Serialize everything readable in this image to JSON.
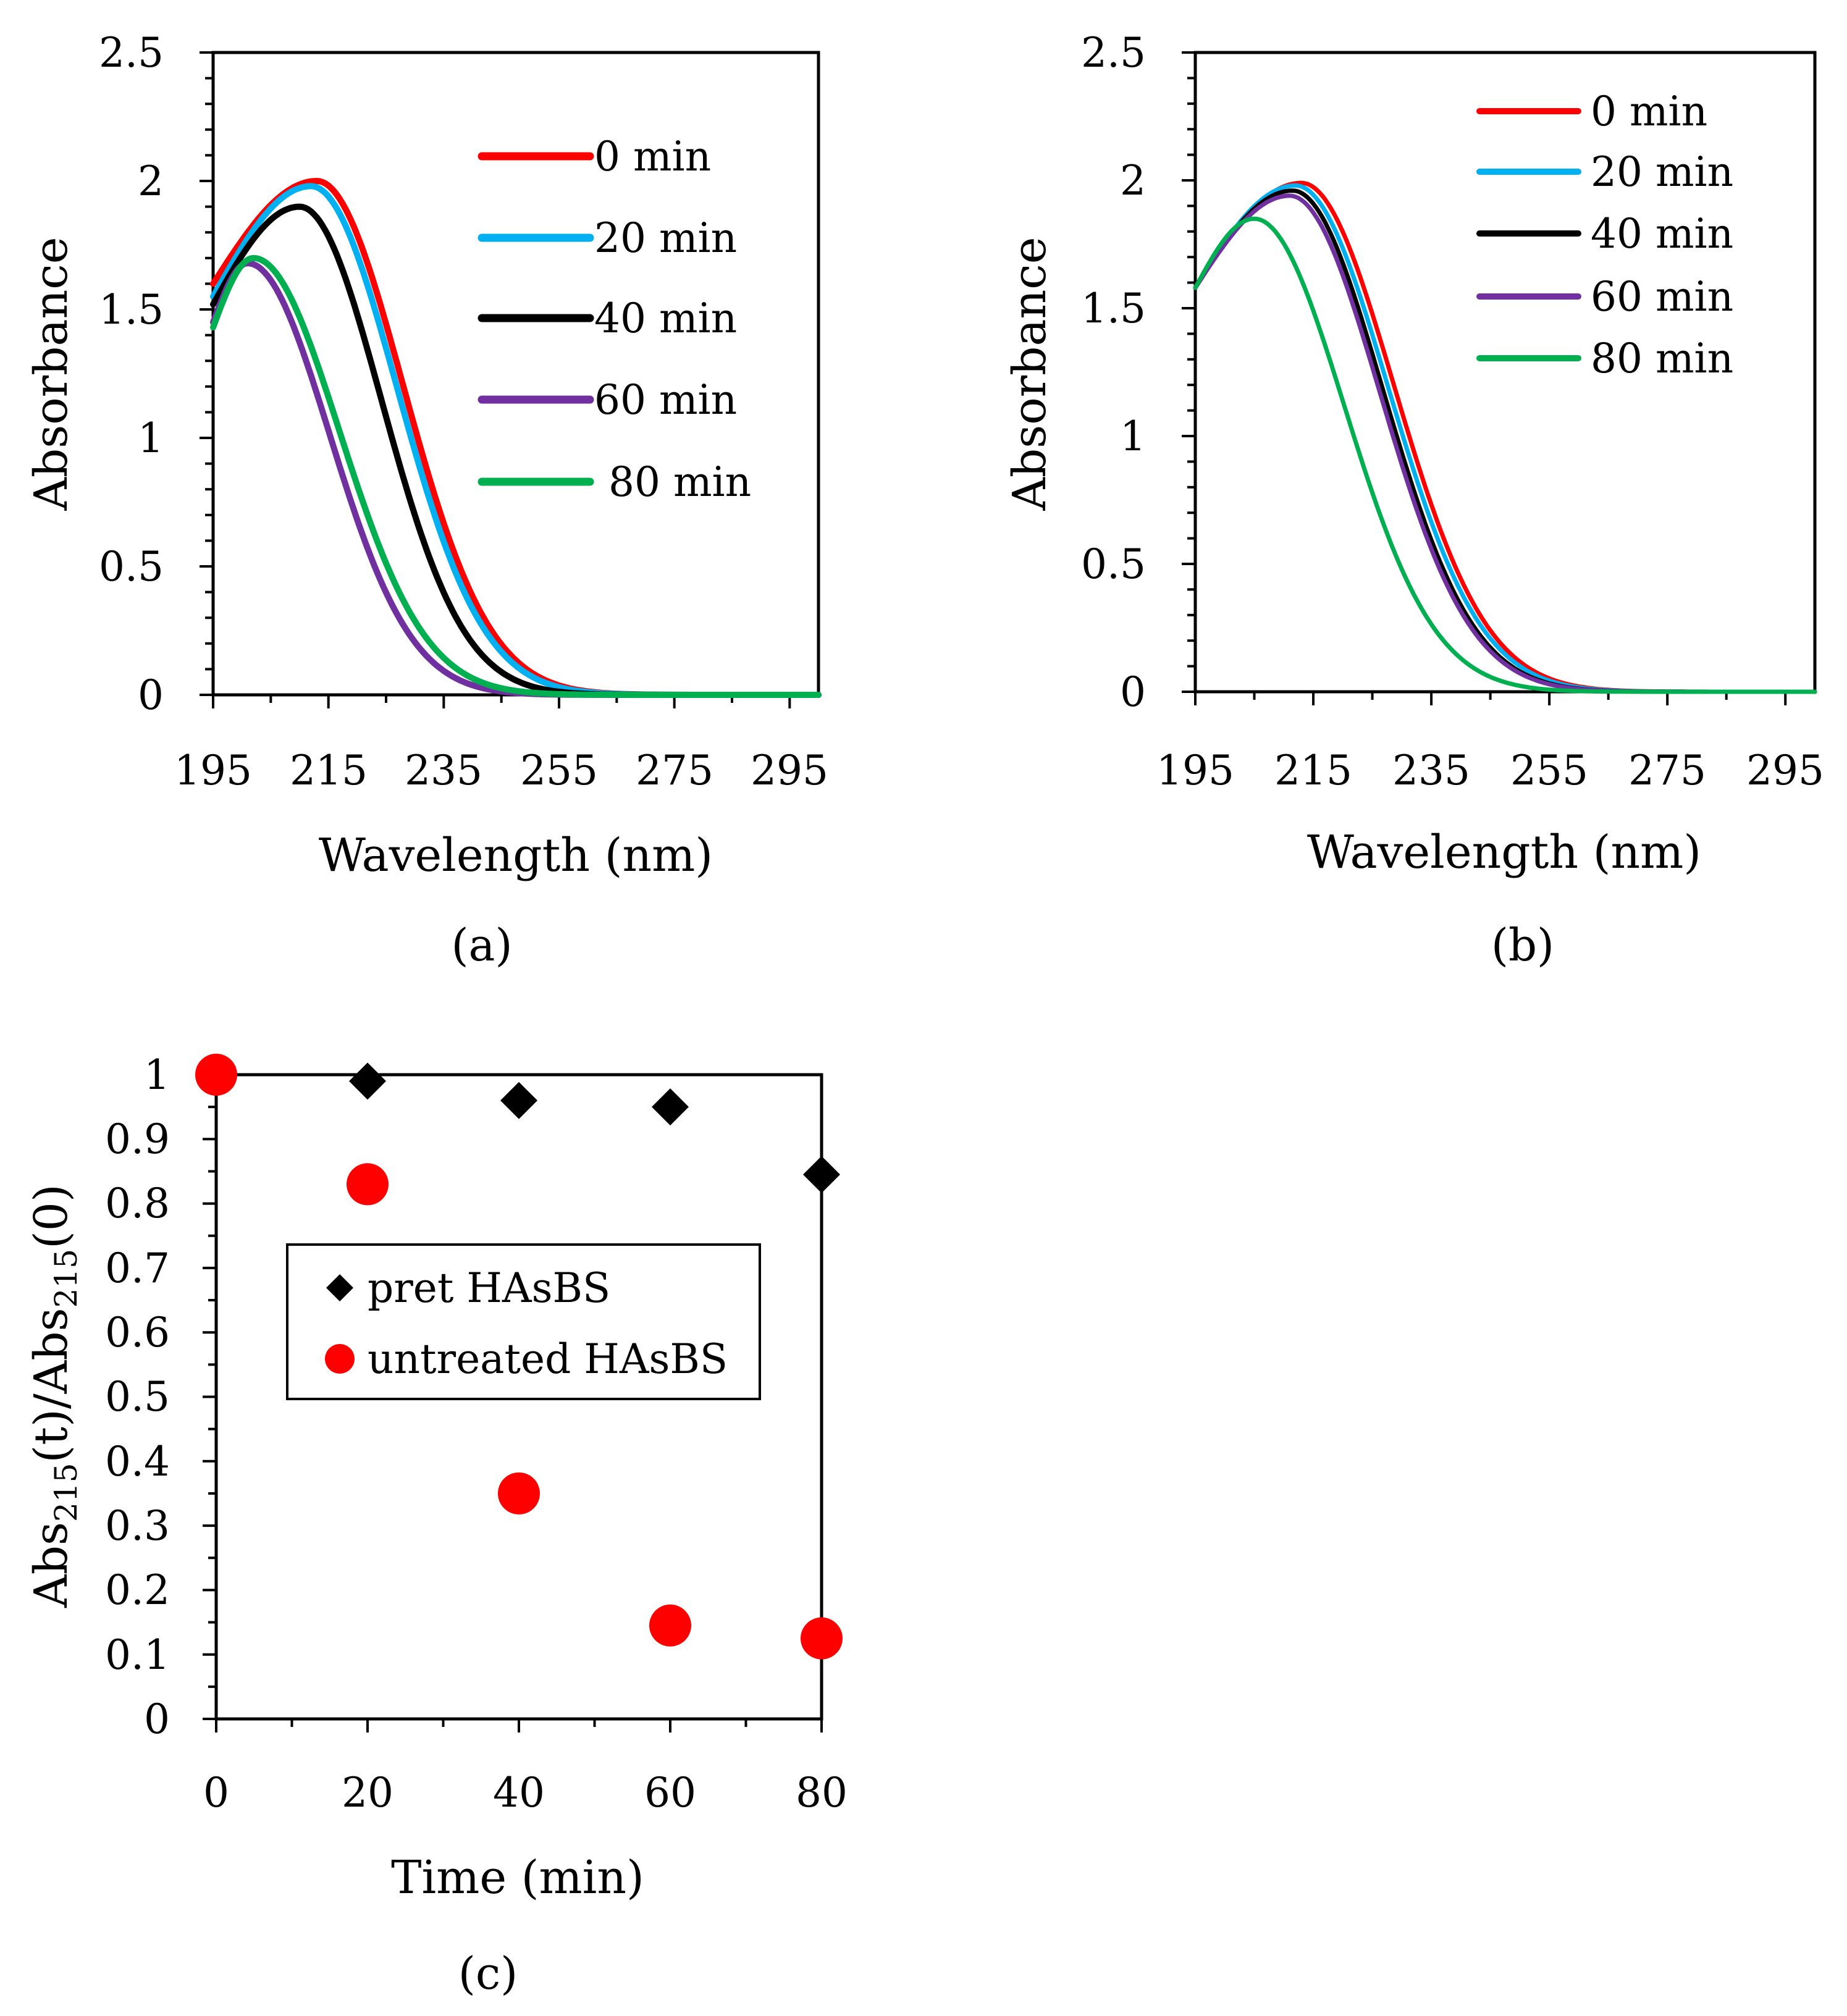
{
  "chart_data": [
    {
      "id": "a",
      "type": "line",
      "panel_label": "(a)",
      "xlabel": "Wavelength (nm)",
      "ylabel": "Absorbance",
      "xlim": [
        195,
        300
      ],
      "ylim": [
        0,
        2.5
      ],
      "x_ticks": [
        "195",
        "215",
        "235",
        "255",
        "275",
        "295"
      ],
      "y_ticks": [
        "0",
        "0.5",
        "1",
        "1.5",
        "2",
        "2.5"
      ],
      "legend_position": "top-right",
      "series": [
        {
          "name": "0 min",
          "color": "#ff0000",
          "peak_x": 213,
          "peak_y": 2.0,
          "start_y": 1.6,
          "width": 21
        },
        {
          "name": "20 min",
          "color": "#00b0f0",
          "peak_x": 212,
          "peak_y": 1.98,
          "start_y": 1.55,
          "width": 21
        },
        {
          "name": "40 min",
          "color": "#000000",
          "peak_x": 210,
          "peak_y": 1.9,
          "start_y": 1.52,
          "width": 20
        },
        {
          "name": "60 min",
          "color": "#7030a0",
          "peak_x": 201,
          "peak_y": 1.68,
          "start_y": 1.45,
          "width": 20
        },
        {
          "name": "80 min",
          "color": "#00b050",
          "peak_x": 202,
          "peak_y": 1.7,
          "start_y": 1.43,
          "width": 21
        }
      ]
    },
    {
      "id": "b",
      "type": "line",
      "panel_label": "(b)",
      "xlabel": "Wavelength (nm)",
      "ylabel": "Absorbance",
      "xlim": [
        195,
        300
      ],
      "ylim": [
        0,
        2.5
      ],
      "x_ticks": [
        "195",
        "215",
        "235",
        "255",
        "275",
        "295"
      ],
      "y_ticks": [
        "0",
        "0.5",
        "1",
        "1.5",
        "2",
        "2.5"
      ],
      "legend_position": "top-right",
      "series": [
        {
          "name": "0 min",
          "color": "#ff0000",
          "peak_x": 213,
          "peak_y": 1.99,
          "start_y": 1.58,
          "width": 22
        },
        {
          "name": "20 min",
          "color": "#00b0f0",
          "peak_x": 212,
          "peak_y": 1.98,
          "start_y": 1.58,
          "width": 22
        },
        {
          "name": "40 min",
          "color": "#000000",
          "peak_x": 211.5,
          "peak_y": 1.96,
          "start_y": 1.58,
          "width": 21.5
        },
        {
          "name": "60 min",
          "color": "#7030a0",
          "peak_x": 211,
          "peak_y": 1.94,
          "start_y": 1.58,
          "width": 21.5
        },
        {
          "name": "80 min",
          "color": "#00b050",
          "peak_x": 205,
          "peak_y": 1.85,
          "start_y": 1.58,
          "width": 21.5
        }
      ]
    },
    {
      "id": "c",
      "type": "scatter",
      "panel_label": "(c)",
      "xlabel": "Time (min)",
      "ylabel_parts": [
        "Abs",
        "215",
        "(t)/Abs",
        "215",
        "(0)"
      ],
      "xlim": [
        0,
        80
      ],
      "ylim": [
        0,
        1
      ],
      "x_ticks": [
        "0",
        "20",
        "40",
        "60",
        "80"
      ],
      "y_ticks": [
        "0",
        "0.1",
        "0.2",
        "0.3",
        "0.4",
        "0.5",
        "0.6",
        "0.7",
        "0.8",
        "0.9",
        "1"
      ],
      "legend_position": "center-left",
      "series": [
        {
          "name": "pret HAsBS",
          "marker": "diamond",
          "color": "#000000",
          "x": [
            20,
            40,
            60,
            80
          ],
          "y": [
            0.99,
            0.96,
            0.95,
            0.845
          ]
        },
        {
          "name": "untreated HAsBS",
          "marker": "circle",
          "color": "#ff0000",
          "x": [
            0,
            20,
            40,
            60,
            80
          ],
          "y": [
            1.0,
            0.83,
            0.35,
            0.145,
            0.125
          ]
        }
      ]
    }
  ]
}
